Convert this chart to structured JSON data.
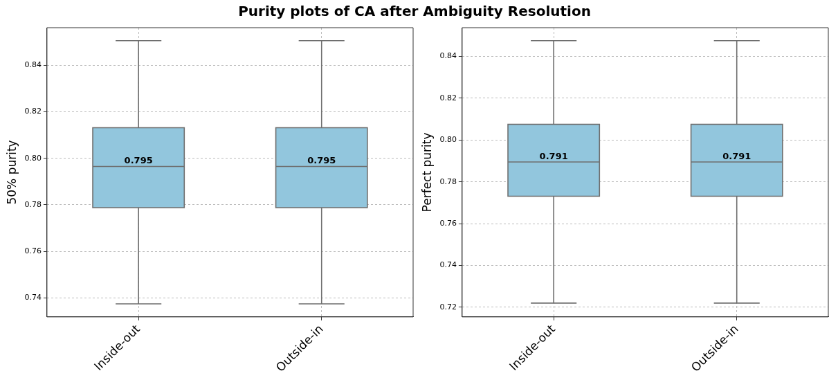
{
  "chart_data": [
    {
      "type": "box",
      "title": "Purity plots of CA after Ambiguity Resolution",
      "ylabel": "50% purity",
      "categories": [
        "Inside-out",
        "Outside-in"
      ],
      "color": "#92c6dd",
      "ylim": [
        0.7318,
        0.8562
      ],
      "yticks": [
        {
          "value": 0.74,
          "label": "0.74"
        },
        {
          "value": 0.76,
          "label": "0.76"
        },
        {
          "value": 0.78,
          "label": "0.78"
        },
        {
          "value": 0.8,
          "label": "0.80"
        },
        {
          "value": 0.82,
          "label": "0.82"
        },
        {
          "value": 0.84,
          "label": "0.84"
        }
      ],
      "grid": true,
      "boxes": [
        {
          "low": 0.7374,
          "q1": 0.7788,
          "median": 0.7965,
          "q3": 0.8132,
          "high": 0.8506
        },
        {
          "low": 0.7374,
          "q1": 0.7788,
          "median": 0.7965,
          "q3": 0.8132,
          "high": 0.8506
        }
      ],
      "annotations": [
        "0.795",
        "0.795"
      ]
    },
    {
      "type": "box",
      "ylabel": "Perfect purity",
      "categories": [
        "Inside-out",
        "Outside-in"
      ],
      "color": "#92c6dd",
      "ylim": [
        0.7154,
        0.8537
      ],
      "yticks": [
        {
          "value": 0.72,
          "label": "0.72"
        },
        {
          "value": 0.74,
          "label": "0.74"
        },
        {
          "value": 0.76,
          "label": "0.76"
        },
        {
          "value": 0.78,
          "label": "0.78"
        },
        {
          "value": 0.8,
          "label": "0.80"
        },
        {
          "value": 0.82,
          "label": "0.82"
        },
        {
          "value": 0.84,
          "label": "0.84"
        }
      ],
      "grid": true,
      "boxes": [
        {
          "low": 0.722,
          "q1": 0.7731,
          "median": 0.7895,
          "q3": 0.8075,
          "high": 0.8475
        },
        {
          "low": 0.722,
          "q1": 0.7731,
          "median": 0.7895,
          "q3": 0.8075,
          "high": 0.8475
        }
      ],
      "annotations": [
        "0.791",
        "0.791"
      ]
    }
  ]
}
